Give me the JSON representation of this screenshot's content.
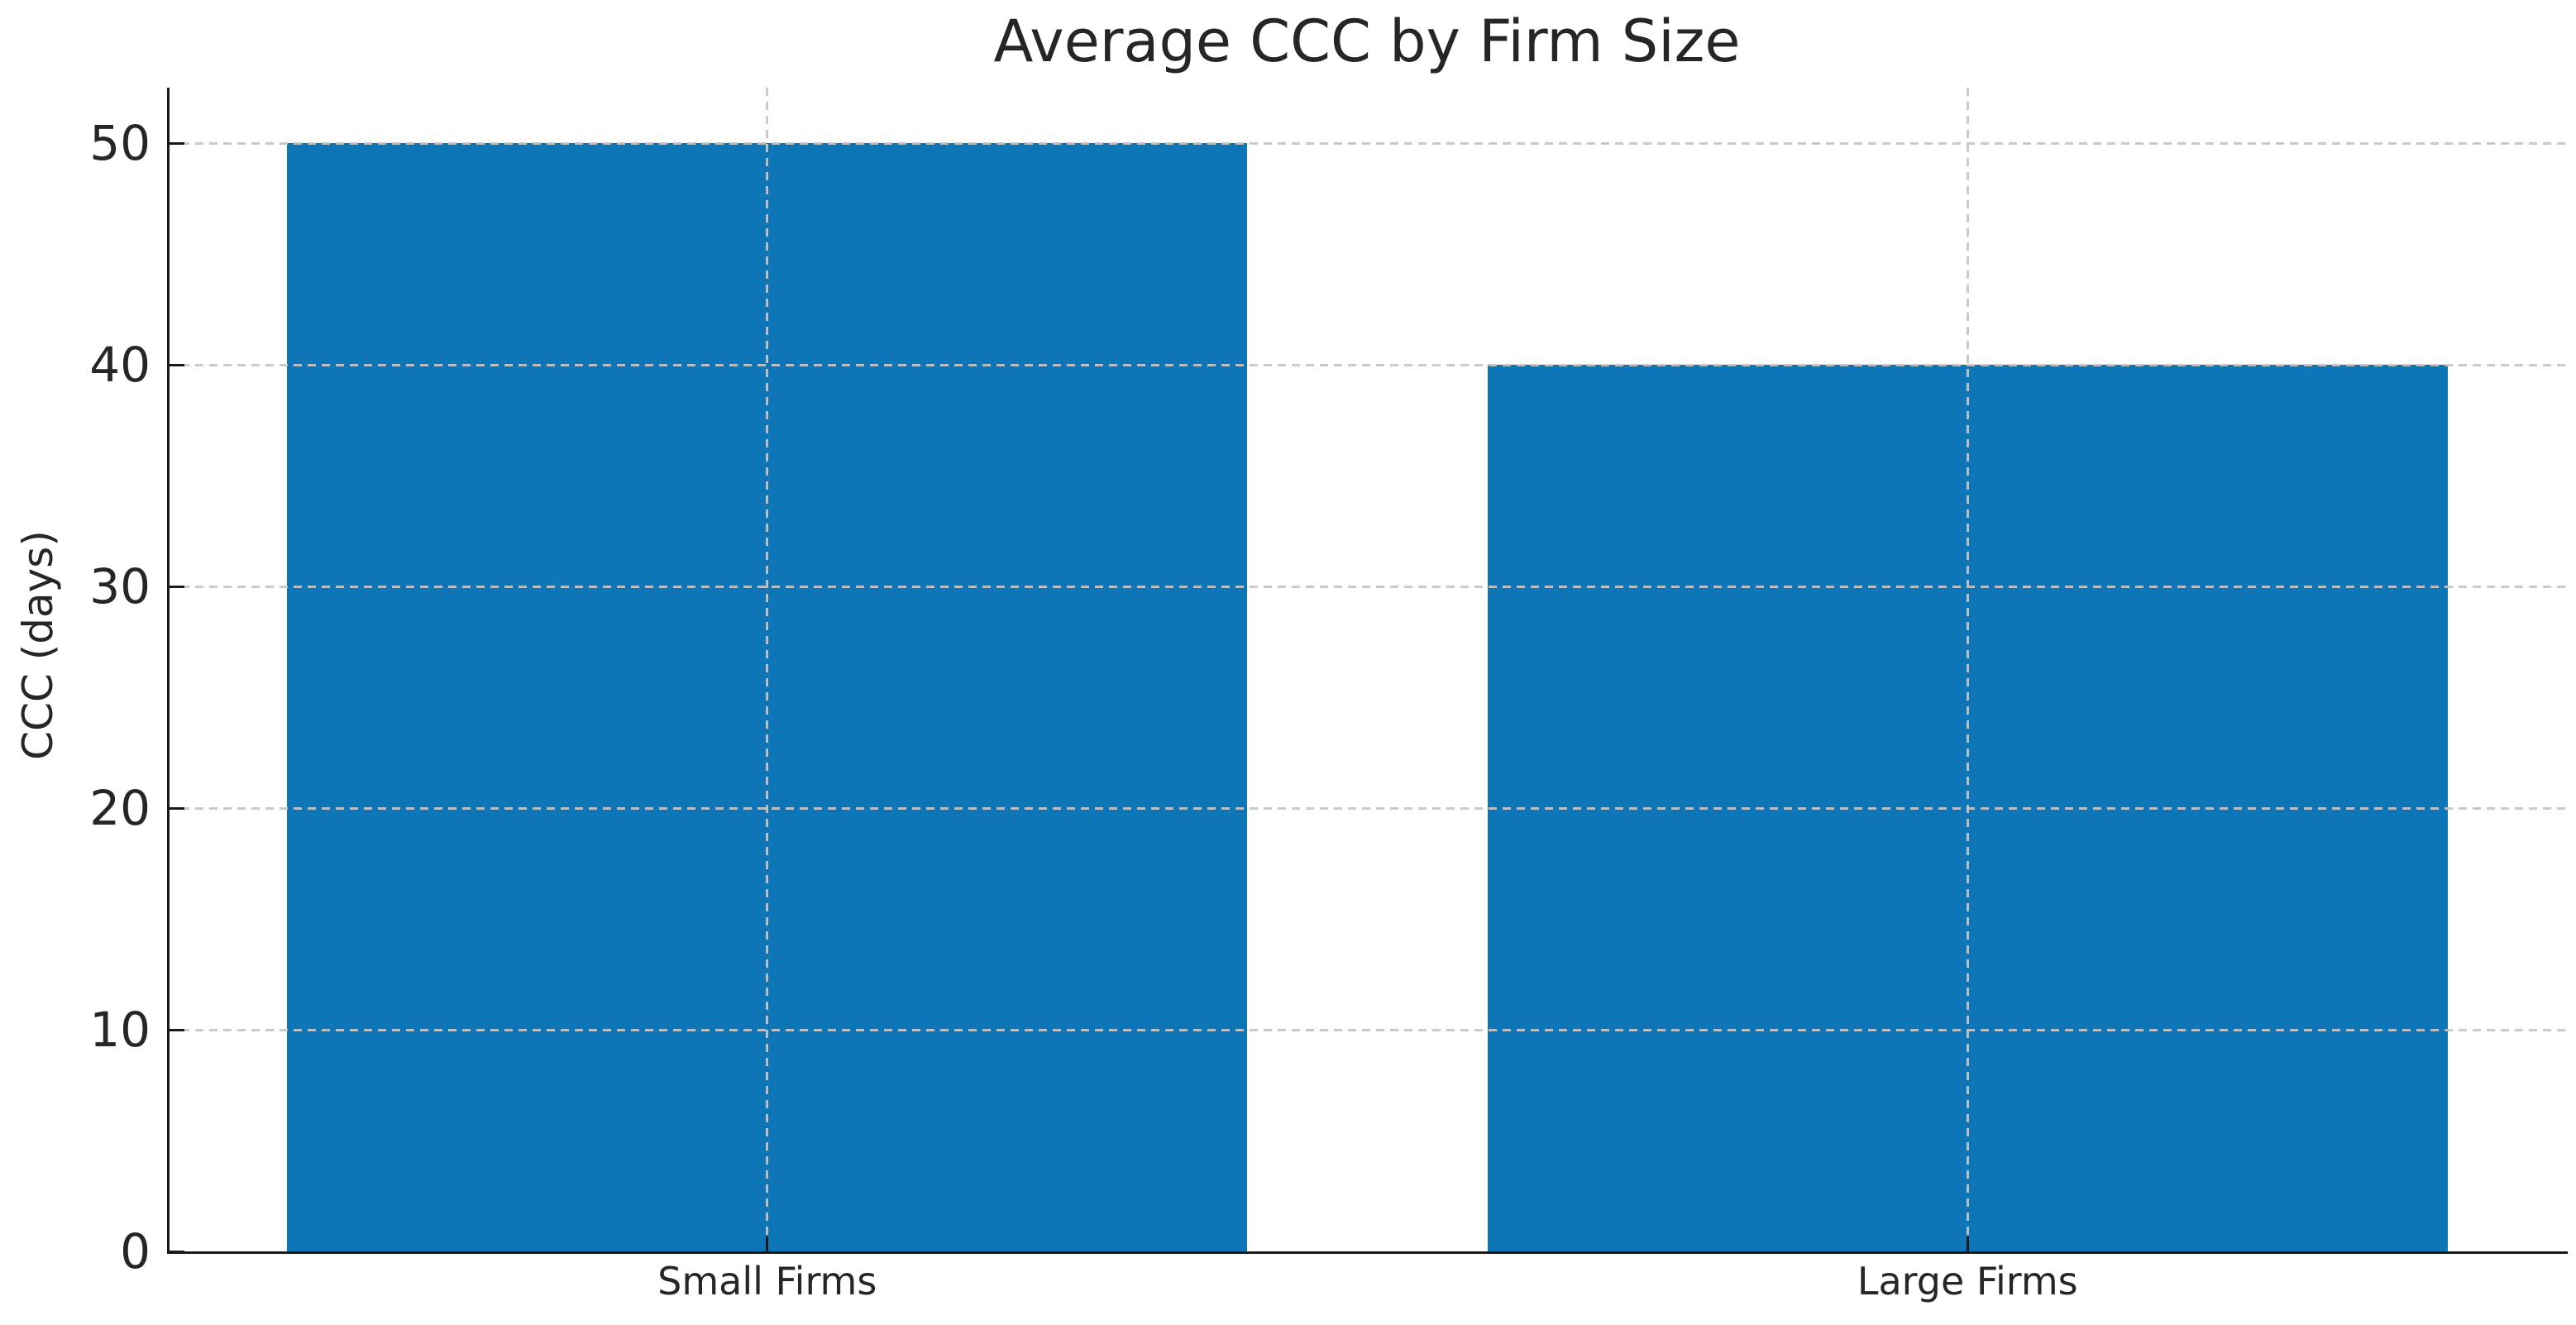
{
  "chart_data": {
    "type": "bar",
    "title": "Average CCC by Firm Size",
    "xlabel": "",
    "ylabel": "CCC (days)",
    "categories": [
      "Small Firms",
      "Large Firms"
    ],
    "values": [
      50,
      40
    ],
    "yticks": [
      0,
      10,
      20,
      30,
      40,
      50
    ],
    "ylim": [
      0,
      52.5
    ],
    "xlim": [
      -0.5,
      1.5
    ],
    "bar_width": 0.8,
    "bar_color": "#0e76b6",
    "grid": {
      "visible": true,
      "style": "dashed",
      "color": "#c6c6c6",
      "axes": "both",
      "drawn_above_bars": true
    },
    "tick_direction": "in",
    "spine_color": "#1a1a1a",
    "text_color": "#262626",
    "legend": "none",
    "background": "#ffffff"
  }
}
